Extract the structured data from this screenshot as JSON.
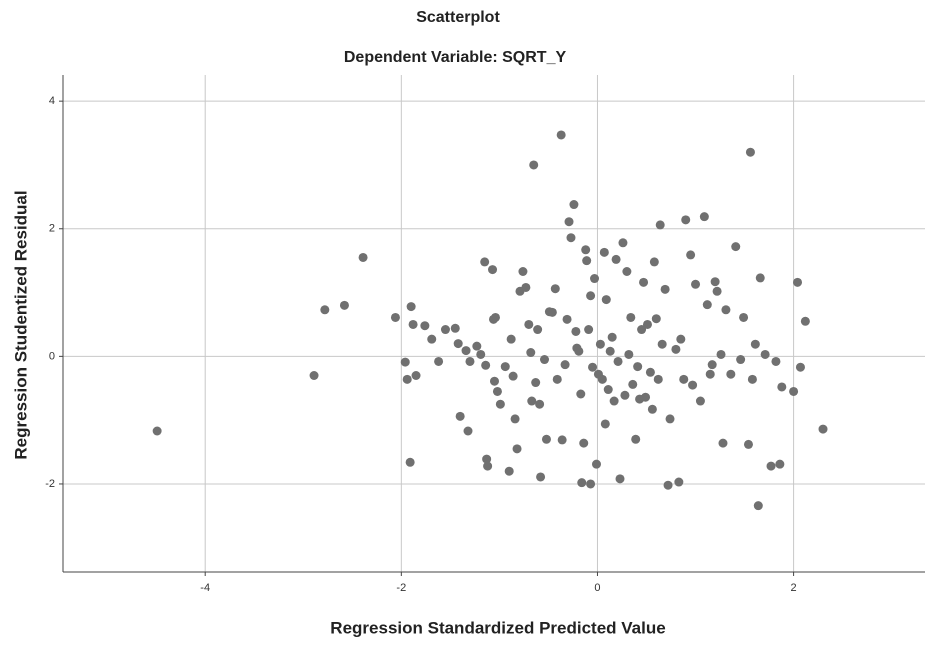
{
  "chart_data": {
    "type": "scatter",
    "title": "Scatterplot",
    "subtitle": "Dependent Variable: SQRT_Y",
    "x_label": "Regression Standardized Predicted Value",
    "y_label": "Regression Studentized Residual",
    "color": "#707070",
    "grid": true,
    "xlim": [
      -5.45,
      3.34
    ],
    "ylim": [
      -3.38,
      4.41
    ],
    "xticks": [
      -4,
      -2,
      0,
      2
    ],
    "yticks": [
      -2,
      0,
      2,
      4
    ],
    "x": [
      -4.49,
      -2.89,
      -2.78,
      -2.58,
      -2.39,
      -2.06,
      -1.96,
      -1.94,
      -1.91,
      -1.9,
      -1.88,
      -1.76,
      -1.69,
      -1.55,
      -1.45,
      -1.42,
      -1.4,
      -1.62,
      -1.85,
      -1.34,
      -1.32,
      -1.3,
      -1.23,
      -1.19,
      -1.15,
      -1.14,
      -1.13,
      -1.12,
      -1.07,
      -1.06,
      -1.04,
      -1.05,
      -1.02,
      -0.99,
      -0.94,
      -0.9,
      -0.88,
      -0.86,
      -0.84,
      -0.82,
      -0.79,
      -0.76,
      -0.73,
      -0.7,
      -0.68,
      -0.67,
      -0.65,
      -0.63,
      -0.61,
      -0.59,
      -0.58,
      -0.54,
      -0.52,
      -0.49,
      -0.46,
      -0.43,
      -0.41,
      -0.37,
      -0.36,
      -0.33,
      -0.31,
      -0.29,
      -0.27,
      -0.24,
      -0.22,
      -0.21,
      -0.19,
      -0.17,
      -0.16,
      -0.14,
      -0.12,
      -0.11,
      -0.09,
      -0.07,
      -0.07,
      -0.05,
      -0.03,
      -0.01,
      0.01,
      0.03,
      0.05,
      0.07,
      0.08,
      0.09,
      0.11,
      0.13,
      0.15,
      0.17,
      0.19,
      0.21,
      0.23,
      0.26,
      0.28,
      0.3,
      0.32,
      0.34,
      0.36,
      0.39,
      0.41,
      0.43,
      0.45,
      0.47,
      0.49,
      0.51,
      0.54,
      0.56,
      0.58,
      0.6,
      0.62,
      0.64,
      0.66,
      0.69,
      0.72,
      0.74,
      0.8,
      0.83,
      0.85,
      0.88,
      0.9,
      0.95,
      0.97,
      1.0,
      1.05,
      1.09,
      1.12,
      1.15,
      1.17,
      1.2,
      1.22,
      1.26,
      1.28,
      1.31,
      1.36,
      1.41,
      1.46,
      1.49,
      1.54,
      1.56,
      1.58,
      1.61,
      1.64,
      1.66,
      1.71,
      1.77,
      1.82,
      1.86,
      1.88,
      2.12,
      2.04,
      2.0,
      2.07,
      2.3
    ],
    "values": [
      -1.17,
      -0.3,
      0.73,
      0.8,
      1.55,
      0.61,
      -0.09,
      -0.36,
      -1.66,
      0.78,
      0.5,
      0.48,
      0.27,
      0.42,
      0.44,
      0.2,
      -0.94,
      -0.08,
      -0.3,
      0.09,
      -1.17,
      -0.08,
      0.16,
      0.03,
      1.48,
      -0.14,
      -1.61,
      -1.72,
      1.36,
      0.58,
      0.61,
      -0.39,
      -0.55,
      -0.75,
      -0.16,
      -1.8,
      0.27,
      -0.31,
      -0.98,
      -1.45,
      1.02,
      1.33,
      1.08,
      0.5,
      0.06,
      -0.7,
      3.0,
      -0.41,
      0.42,
      -0.75,
      -1.89,
      -0.05,
      -1.3,
      0.7,
      0.69,
      1.06,
      -0.36,
      3.47,
      -1.31,
      -0.13,
      0.58,
      2.11,
      1.86,
      2.38,
      0.39,
      0.13,
      0.08,
      -0.59,
      -1.98,
      -1.36,
      1.67,
      1.5,
      0.42,
      0.95,
      -2.0,
      -0.17,
      1.22,
      -1.69,
      -0.28,
      0.19,
      -0.36,
      1.63,
      -1.06,
      0.89,
      -0.52,
      0.08,
      0.3,
      -0.7,
      1.52,
      -0.08,
      -1.92,
      1.78,
      -0.61,
      1.33,
      0.03,
      0.61,
      -0.44,
      -1.3,
      -0.16,
      -0.67,
      0.42,
      1.16,
      -0.64,
      0.5,
      -0.25,
      -0.83,
      1.48,
      0.59,
      -0.36,
      2.06,
      0.19,
      1.05,
      -2.02,
      -0.98,
      0.11,
      -1.97,
      0.27,
      -0.36,
      2.14,
      1.59,
      -0.45,
      1.13,
      -0.7,
      2.19,
      0.81,
      -0.28,
      -0.13,
      1.17,
      1.02,
      0.03,
      -1.36,
      0.73,
      -0.28,
      1.72,
      -0.05,
      0.61,
      -1.38,
      3.2,
      -0.36,
      0.19,
      -2.34,
      1.23,
      0.03,
      -1.72,
      -0.08,
      -1.69,
      -0.48,
      0.55,
      1.16,
      -0.55,
      -0.17,
      -1.14
    ]
  }
}
